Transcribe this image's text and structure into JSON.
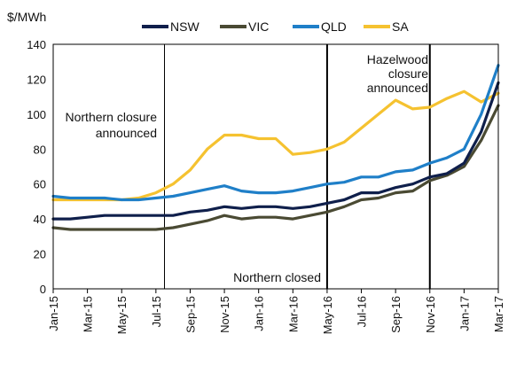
{
  "chart_data": {
    "type": "line",
    "title": "",
    "ylabel": "$/MWh",
    "xlabel": "",
    "ylim": [
      0,
      140
    ],
    "yticks": [
      0,
      20,
      40,
      60,
      80,
      100,
      120,
      140
    ],
    "x_range": [
      "Jan-15",
      "Mar-17"
    ],
    "x_tick_labels": [
      "Jan-15",
      "Mar-15",
      "May-15",
      "Jul-15",
      "Sep-15",
      "Nov-15",
      "Jan-16",
      "Mar-16",
      "May-16",
      "Jul-16",
      "Sep-16",
      "Nov-16",
      "Jan-17",
      "Mar-17"
    ],
    "grid": false,
    "legend_position": "top",
    "series": [
      {
        "name": "NSW",
        "color": "#0f1f4b",
        "points": [
          [
            "Jan-15",
            40
          ],
          [
            "Feb-15",
            40
          ],
          [
            "Mar-15",
            41
          ],
          [
            "Apr-15",
            42
          ],
          [
            "May-15",
            42
          ],
          [
            "Jun-15",
            42
          ],
          [
            "Jul-15",
            42
          ],
          [
            "Aug-15",
            42
          ],
          [
            "Sep-15",
            44
          ],
          [
            "Oct-15",
            45
          ],
          [
            "Nov-15",
            47
          ],
          [
            "Dec-15",
            46
          ],
          [
            "Jan-16",
            47
          ],
          [
            "Feb-16",
            47
          ],
          [
            "Mar-16",
            46
          ],
          [
            "Apr-16",
            47
          ],
          [
            "May-16",
            49
          ],
          [
            "Jun-16",
            51
          ],
          [
            "Jul-16",
            55
          ],
          [
            "Aug-16",
            55
          ],
          [
            "Sep-16",
            58
          ],
          [
            "Oct-16",
            60
          ],
          [
            "Nov-16",
            64
          ],
          [
            "Dec-16",
            66
          ],
          [
            "Jan-17",
            72
          ],
          [
            "Feb-17",
            90
          ],
          [
            "Mar-17",
            118
          ]
        ]
      },
      {
        "name": "VIC",
        "color": "#4a4a33",
        "points": [
          [
            "Jan-15",
            35
          ],
          [
            "Feb-15",
            34
          ],
          [
            "Mar-15",
            34
          ],
          [
            "Apr-15",
            34
          ],
          [
            "May-15",
            34
          ],
          [
            "Jun-15",
            34
          ],
          [
            "Jul-15",
            34
          ],
          [
            "Aug-15",
            35
          ],
          [
            "Sep-15",
            37
          ],
          [
            "Oct-15",
            39
          ],
          [
            "Nov-15",
            42
          ],
          [
            "Dec-15",
            40
          ],
          [
            "Jan-16",
            41
          ],
          [
            "Feb-16",
            41
          ],
          [
            "Mar-16",
            40
          ],
          [
            "Apr-16",
            42
          ],
          [
            "May-16",
            44
          ],
          [
            "Jun-16",
            47
          ],
          [
            "Jul-16",
            51
          ],
          [
            "Aug-16",
            52
          ],
          [
            "Sep-16",
            55
          ],
          [
            "Oct-16",
            56
          ],
          [
            "Nov-16",
            62
          ],
          [
            "Dec-16",
            65
          ],
          [
            "Jan-17",
            70
          ],
          [
            "Feb-17",
            85
          ],
          [
            "Mar-17",
            105
          ]
        ]
      },
      {
        "name": "QLD",
        "color": "#1f7fc8",
        "points": [
          [
            "Jan-15",
            53
          ],
          [
            "Feb-15",
            52
          ],
          [
            "Mar-15",
            52
          ],
          [
            "Apr-15",
            52
          ],
          [
            "May-15",
            51
          ],
          [
            "Jun-15",
            51
          ],
          [
            "Jul-15",
            52
          ],
          [
            "Aug-15",
            53
          ],
          [
            "Sep-15",
            55
          ],
          [
            "Oct-15",
            57
          ],
          [
            "Nov-15",
            59
          ],
          [
            "Dec-15",
            56
          ],
          [
            "Jan-16",
            55
          ],
          [
            "Feb-16",
            55
          ],
          [
            "Mar-16",
            56
          ],
          [
            "Apr-16",
            58
          ],
          [
            "May-16",
            60
          ],
          [
            "Jun-16",
            61
          ],
          [
            "Jul-16",
            64
          ],
          [
            "Aug-16",
            64
          ],
          [
            "Sep-16",
            67
          ],
          [
            "Oct-16",
            68
          ],
          [
            "Nov-16",
            72
          ],
          [
            "Dec-16",
            75
          ],
          [
            "Jan-17",
            80
          ],
          [
            "Feb-17",
            100
          ],
          [
            "Mar-17",
            128
          ]
        ]
      },
      {
        "name": "SA",
        "color": "#f5c230",
        "points": [
          [
            "Jan-15",
            51
          ],
          [
            "Feb-15",
            51
          ],
          [
            "Mar-15",
            51
          ],
          [
            "Apr-15",
            51
          ],
          [
            "May-15",
            51
          ],
          [
            "Jun-15",
            52
          ],
          [
            "Jul-15",
            55
          ],
          [
            "Aug-15",
            60
          ],
          [
            "Sep-15",
            68
          ],
          [
            "Oct-15",
            80
          ],
          [
            "Nov-15",
            88
          ],
          [
            "Dec-15",
            88
          ],
          [
            "Jan-16",
            86
          ],
          [
            "Feb-16",
            86
          ],
          [
            "Mar-16",
            77
          ],
          [
            "Apr-16",
            78
          ],
          [
            "May-16",
            80
          ],
          [
            "Jun-16",
            84
          ],
          [
            "Jul-16",
            92
          ],
          [
            "Aug-16",
            100
          ],
          [
            "Sep-16",
            108
          ],
          [
            "Oct-16",
            103
          ],
          [
            "Nov-16",
            104
          ],
          [
            "Dec-16",
            109
          ],
          [
            "Jan-17",
            113
          ],
          [
            "Feb-17",
            107
          ],
          [
            "Mar-17",
            112
          ]
        ]
      }
    ],
    "vertical_markers": [
      {
        "x": "Jul-15",
        "mid_month": true,
        "style": "thin"
      },
      {
        "x": "May-16",
        "style": "thick"
      },
      {
        "x": "Nov-16",
        "style": "thick"
      }
    ],
    "annotations": [
      {
        "lines": [
          "Northern closure",
          "announced"
        ]
      },
      {
        "lines": [
          "Northern closed"
        ]
      },
      {
        "lines": [
          "Hazelwood",
          "closure",
          "announced"
        ]
      }
    ]
  }
}
